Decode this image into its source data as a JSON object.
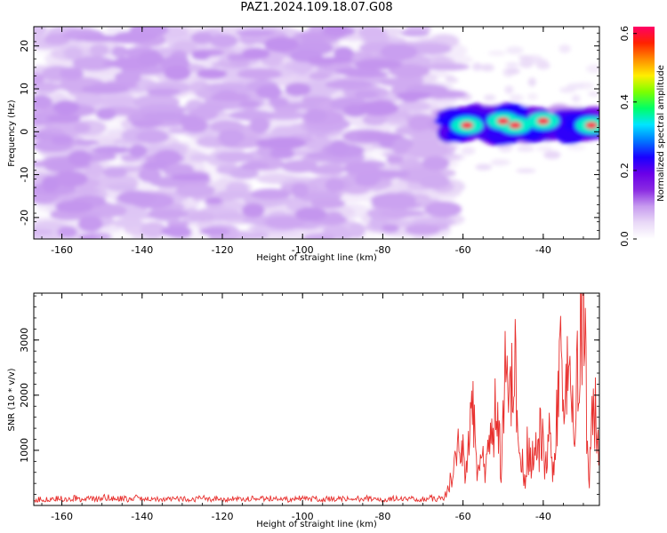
{
  "chart_data": [
    {
      "type": "heatmap",
      "title": "PAZ1.2024.109.18.07.G08",
      "xlabel": "Height of straight line (km)",
      "ylabel": "Frequency (Hz)",
      "xlim": [
        -167,
        -26
      ],
      "ylim": [
        -25,
        24.5
      ],
      "x_ticks": [
        -160,
        -140,
        -120,
        -100,
        -80,
        -60,
        -40
      ],
      "y_ticks": [
        -20,
        -10,
        0,
        10,
        20
      ],
      "colorbar": {
        "label": "Normalized spectral amplitude",
        "range": [
          0,
          0.62
        ],
        "ticks": [
          0.0,
          0.2,
          0.4,
          0.6
        ],
        "colormap": [
          "#ffffff",
          "#e9d9f7",
          "#c79bef",
          "#8a2be2",
          "#6a00e8",
          "#1a00ff",
          "#0077ff",
          "#00e5ff",
          "#00ff66",
          "#7cff00",
          "#ffee00",
          "#ff8c00",
          "#ff2200",
          "#ff0066"
        ]
      },
      "noise_region": {
        "x_range": [
          -167,
          -64
        ],
        "freq_range": [
          -25,
          24.5
        ],
        "amplitude_range": [
          0.0,
          0.1
        ]
      },
      "signal_track": {
        "x_range": [
          -64,
          -26
        ],
        "freq_center_hz": 2,
        "freq_halfwidth_hz": 3,
        "peak_amplitude": 0.6,
        "peak_heights_km": [
          -59,
          -50,
          -47,
          -40,
          -28
        ]
      }
    },
    {
      "type": "line",
      "title": "",
      "xlabel": "Height of straight line (km)",
      "ylabel": "SNR (10 * v/v)",
      "xlim": [
        -167,
        -26
      ],
      "ylim": [
        0,
        3850
      ],
      "x_ticks": [
        -160,
        -140,
        -120,
        -100,
        -80,
        -60,
        -40
      ],
      "y_ticks": [
        1000,
        2000,
        3000
      ],
      "color": "#e8302e",
      "series": [
        {
          "values": [
            [
              -167,
              100
            ],
            [
              -165,
              120
            ],
            [
              -163,
              95
            ],
            [
              -161,
              130
            ],
            [
              -159,
              110
            ],
            [
              -157,
              140
            ],
            [
              -155,
              105
            ],
            [
              -153,
              125
            ],
            [
              -151,
              110
            ],
            [
              -149,
              150
            ],
            [
              -147,
              115
            ],
            [
              -145,
              130
            ],
            [
              -143,
              100
            ],
            [
              -141,
              145
            ],
            [
              -139,
              110
            ],
            [
              -137,
              120
            ],
            [
              -135,
              95
            ],
            [
              -133,
              135
            ],
            [
              -131,
              115
            ],
            [
              -129,
              125
            ],
            [
              -127,
              100
            ],
            [
              -125,
              140
            ],
            [
              -123,
              110
            ],
            [
              -121,
              120
            ],
            [
              -119,
              95
            ],
            [
              -117,
              130
            ],
            [
              -115,
              110
            ],
            [
              -113,
              125
            ],
            [
              -111,
              100
            ],
            [
              -109,
              140
            ],
            [
              -107,
              115
            ],
            [
              -105,
              120
            ],
            [
              -103,
              100
            ],
            [
              -101,
              135
            ],
            [
              -99,
              110
            ],
            [
              -97,
              125
            ],
            [
              -95,
              100
            ],
            [
              -93,
              130
            ],
            [
              -91,
              115
            ],
            [
              -89,
              120
            ],
            [
              -87,
              105
            ],
            [
              -85,
              140
            ],
            [
              -83,
              115
            ],
            [
              -81,
              120
            ],
            [
              -79,
              100
            ],
            [
              -77,
              130
            ],
            [
              -75,
              110
            ],
            [
              -73,
              125
            ],
            [
              -71,
              105
            ],
            [
              -69,
              140
            ],
            [
              -67,
              120
            ],
            [
              -65,
              130
            ],
            [
              -64,
              250
            ],
            [
              -63,
              500
            ],
            [
              -62,
              850
            ],
            [
              -61,
              1000
            ],
            [
              -60.5,
              750
            ],
            [
              -60,
              1150
            ],
            [
              -59.5,
              550
            ],
            [
              -59,
              950
            ],
            [
              -58.5,
              1250
            ],
            [
              -58,
              1500
            ],
            [
              -57.5,
              1700
            ],
            [
              -57,
              1100
            ],
            [
              -56.5,
              500
            ],
            [
              -56,
              750
            ],
            [
              -55.5,
              600
            ],
            [
              -55,
              800
            ],
            [
              -54.5,
              550
            ],
            [
              -54,
              900
            ],
            [
              -53.5,
              1700
            ],
            [
              -53,
              1450
            ],
            [
              -52.5,
              1000
            ],
            [
              -52,
              1800
            ],
            [
              -51.5,
              1600
            ],
            [
              -51,
              1200
            ],
            [
              -50.5,
              700
            ],
            [
              -50,
              1950
            ],
            [
              -49.5,
              2200
            ],
            [
              -49,
              2350
            ],
            [
              -48.5,
              2600
            ],
            [
              -48,
              2000
            ],
            [
              -47.5,
              2100
            ],
            [
              -47,
              2450
            ],
            [
              -46.5,
              1400
            ],
            [
              -46,
              700
            ],
            [
              -45.5,
              1000
            ],
            [
              -45,
              650
            ],
            [
              -44.5,
              500
            ],
            [
              -44,
              1100
            ],
            [
              -43.5,
              850
            ],
            [
              -43,
              700
            ],
            [
              -42.5,
              1000
            ],
            [
              -42,
              1350
            ],
            [
              -41.5,
              1500
            ],
            [
              -41,
              1100
            ],
            [
              -40.5,
              1500
            ],
            [
              -40,
              1100
            ],
            [
              -39.5,
              700
            ],
            [
              -39,
              1000
            ],
            [
              -38.5,
              1300
            ],
            [
              -38,
              850
            ],
            [
              -37.5,
              600
            ],
            [
              -37,
              1100
            ],
            [
              -36.5,
              1700
            ],
            [
              -36,
              2200
            ],
            [
              -35.5,
              3100
            ],
            [
              -35,
              1950
            ],
            [
              -34.5,
              1600
            ],
            [
              -34,
              2800
            ],
            [
              -33.5,
              2150
            ],
            [
              -33,
              3050
            ],
            [
              -32.5,
              2000
            ],
            [
              -32,
              1850
            ],
            [
              -31.5,
              2300
            ],
            [
              -31,
              3200
            ],
            [
              -30.5,
              3500
            ],
            [
              -30,
              3850
            ],
            [
              -29.5,
              2500
            ],
            [
              -29,
              1300
            ],
            [
              -28.5,
              250
            ],
            [
              -28,
              1700
            ],
            [
              -27.5,
              1600
            ],
            [
              -27,
              1750
            ],
            [
              -26.5,
              1200
            ],
            [
              -26,
              1000
            ]
          ]
        }
      ]
    }
  ]
}
